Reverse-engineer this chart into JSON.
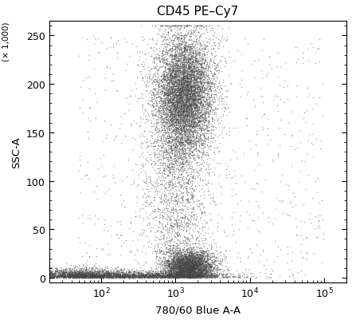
{
  "title": "CD45 PE–Cy7",
  "xlabel": "780/60 Blue A-A",
  "ylabel": "SSC-A",
  "ylabel_scale_note": "(× 1,000)",
  "xlim_log": [
    20,
    200000
  ],
  "ylim": [
    -5,
    265
  ],
  "yticks": [
    0,
    50,
    100,
    150,
    200,
    250
  ],
  "background_color": "#ffffff",
  "dot_color": "#444444",
  "dot_alpha": 0.45,
  "dot_size": 1.2,
  "seed": 42,
  "title_fontsize": 11,
  "label_fontsize": 9.5,
  "tick_fontsize": 9
}
